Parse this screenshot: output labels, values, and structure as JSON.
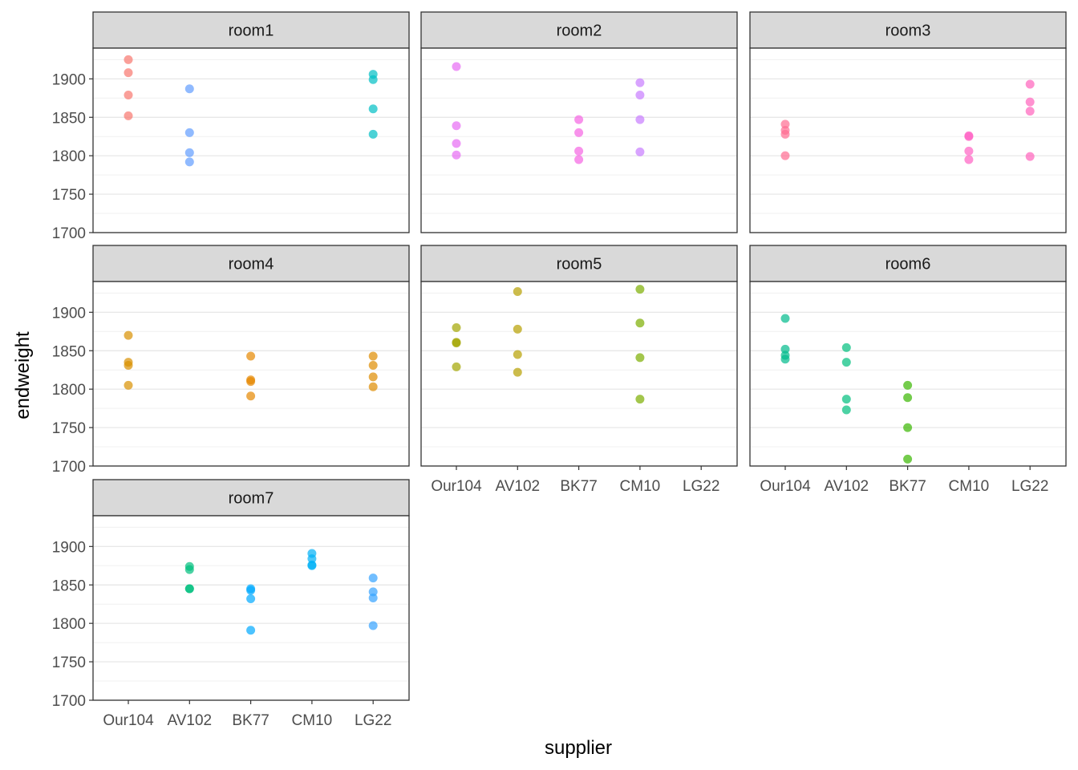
{
  "chart_data": {
    "type": "scatter",
    "xlabel": "supplier",
    "ylabel": "endweight",
    "categories": [
      "Our104",
      "AV102",
      "BK77",
      "CM10",
      "LG22"
    ],
    "ylim": [
      1700,
      1940
    ],
    "yticks": [
      1700,
      1750,
      1800,
      1850,
      1900
    ],
    "grid": true,
    "facets": [
      {
        "name": "room1",
        "points": [
          {
            "supplier": "Our104",
            "values": [
              1925,
              1908,
              1879,
              1852
            ],
            "color": "#F8766D"
          },
          {
            "supplier": "AV102",
            "values": [
              1887,
              1830,
              1804,
              1792
            ],
            "color": "#619CFF"
          },
          {
            "supplier": "LG22",
            "values": [
              1906,
              1899,
              1861,
              1828
            ],
            "color": "#00BFC4"
          }
        ]
      },
      {
        "name": "room2",
        "points": [
          {
            "supplier": "Our104",
            "values": [
              1916,
              1839,
              1816,
              1801
            ],
            "color": "#E76BF3"
          },
          {
            "supplier": "BK77",
            "values": [
              1847,
              1830,
              1806,
              1795
            ],
            "color": "#F564E3"
          },
          {
            "supplier": "CM10",
            "values": [
              1895,
              1879,
              1847,
              1805
            ],
            "color": "#C77CFF"
          }
        ]
      },
      {
        "name": "room3",
        "points": [
          {
            "supplier": "Our104",
            "values": [
              1841,
              1833,
              1828,
              1800
            ],
            "color": "#FF6C91"
          },
          {
            "supplier": "CM10",
            "values": [
              1826,
              1825,
              1806,
              1795
            ],
            "color": "#FF61C3"
          },
          {
            "supplier": "LG22",
            "values": [
              1893,
              1870,
              1858,
              1799
            ],
            "color": "#FF62BC"
          }
        ]
      },
      {
        "name": "room4",
        "points": [
          {
            "supplier": "Our104",
            "values": [
              1870,
              1835,
              1831,
              1805
            ],
            "color": "#D89000"
          },
          {
            "supplier": "BK77",
            "values": [
              1843,
              1812,
              1810,
              1791
            ],
            "color": "#E58700"
          },
          {
            "supplier": "LG22",
            "values": [
              1843,
              1831,
              1816,
              1803
            ],
            "color": "#DE8C00"
          }
        ]
      },
      {
        "name": "room5",
        "points": [
          {
            "supplier": "Our104",
            "values": [
              1880,
              1861,
              1860,
              1829
            ],
            "color": "#A3A500"
          },
          {
            "supplier": "AV102",
            "values": [
              1927,
              1878,
              1845,
              1822
            ],
            "color": "#B79F00"
          },
          {
            "supplier": "CM10",
            "values": [
              1930,
              1886,
              1841,
              1787
            ],
            "color": "#7CAE00"
          }
        ]
      },
      {
        "name": "room6",
        "points": [
          {
            "supplier": "Our104",
            "values": [
              1892,
              1852,
              1844,
              1839
            ],
            "color": "#00BA8B"
          },
          {
            "supplier": "AV102",
            "values": [
              1854,
              1835,
              1787,
              1773
            ],
            "color": "#00BF7D"
          },
          {
            "supplier": "BK77",
            "values": [
              1805,
              1789,
              1750,
              1709
            ],
            "color": "#39B600"
          }
        ]
      },
      {
        "name": "room7",
        "points": [
          {
            "supplier": "AV102",
            "values": [
              1874,
              1870,
              1845,
              1845
            ],
            "color": "#00BF7D"
          },
          {
            "supplier": "BK77",
            "values": [
              1845,
              1843,
              1832,
              1791
            ],
            "color": "#00A9FF"
          },
          {
            "supplier": "CM10",
            "values": [
              1891,
              1884,
              1876,
              1875
            ],
            "color": "#00B0F6"
          },
          {
            "supplier": "LG22",
            "values": [
              1859,
              1841,
              1833,
              1797
            ],
            "color": "#35A2FF"
          }
        ]
      }
    ]
  }
}
